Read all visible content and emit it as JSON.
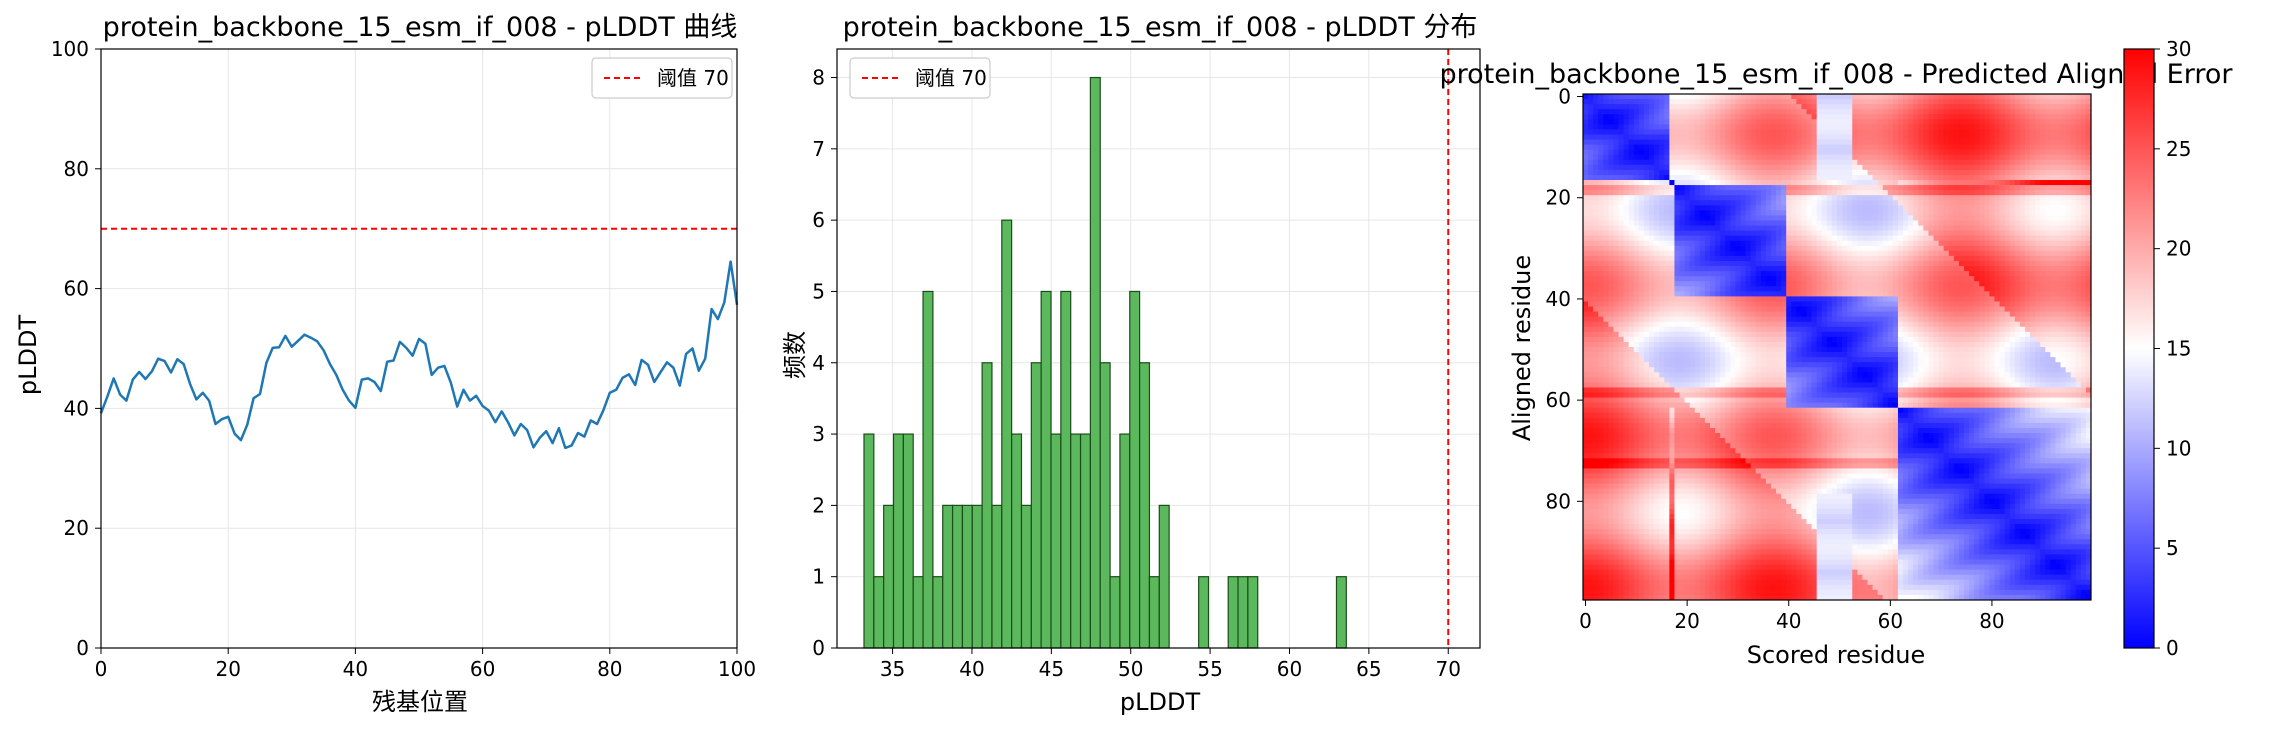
{
  "chart_data": [
    {
      "type": "line",
      "title": "protein_backbone_15_esm_if_008 - pLDDT 曲线",
      "xlabel": "残基位置",
      "ylabel": "pLDDT",
      "xlim": [
        0,
        100
      ],
      "ylim": [
        0,
        100
      ],
      "xticks": [
        0,
        20,
        40,
        60,
        80,
        100
      ],
      "yticks": [
        0,
        20,
        40,
        60,
        80,
        100
      ],
      "grid": true,
      "legend_position": "top-right",
      "legend": [
        "阈值 70"
      ],
      "threshold": 70,
      "line_color": "#1f77b4",
      "threshold_color": "#ff0000",
      "x": [
        0,
        1,
        2,
        3,
        4,
        5,
        6,
        7,
        8,
        9,
        10,
        11,
        12,
        13,
        14,
        15,
        16,
        17,
        18,
        19,
        20,
        21,
        22,
        23,
        24,
        25,
        26,
        27,
        28,
        29,
        30,
        31,
        32,
        33,
        34,
        35,
        36,
        37,
        38,
        39,
        40,
        41,
        42,
        43,
        44,
        45,
        46,
        47,
        48,
        49,
        50,
        51,
        52,
        53,
        54,
        55,
        56,
        57,
        58,
        59,
        60,
        61,
        62,
        63,
        64,
        65,
        66,
        67,
        68,
        69,
        70,
        71,
        72,
        73,
        74,
        75,
        76,
        77,
        78,
        79,
        80,
        81,
        82,
        83,
        84,
        85,
        86,
        87,
        88,
        89,
        90,
        91,
        92,
        93,
        94,
        95,
        96,
        97,
        98,
        99,
        100
      ],
      "values": [
        39.2,
        42.0,
        45.0,
        42.3,
        41.3,
        44.8,
        46.1,
        44.9,
        46.2,
        48.3,
        47.9,
        46.0,
        48.2,
        47.4,
        44.1,
        41.5,
        42.6,
        41.3,
        37.4,
        38.2,
        38.6,
        35.8,
        34.7,
        37.3,
        41.7,
        42.4,
        47.6,
        50.1,
        50.2,
        52.1,
        50.3,
        51.3,
        52.3,
        51.8,
        51.2,
        49.7,
        47.4,
        45.6,
        43.1,
        41.3,
        40.1,
        44.8,
        45.0,
        44.4,
        42.9,
        47.8,
        48.0,
        51.1,
        50.1,
        48.8,
        51.6,
        50.8,
        45.6,
        46.8,
        47.1,
        44.3,
        40.3,
        43.1,
        41.3,
        42.1,
        40.4,
        39.6,
        37.7,
        39.5,
        37.7,
        35.5,
        37.4,
        36.4,
        33.5,
        35.1,
        36.2,
        34.2,
        36.7,
        33.4,
        33.8,
        35.9,
        35.3,
        38.0,
        37.4,
        39.7,
        42.6,
        43.1,
        45.1,
        45.7,
        43.9,
        48.1,
        47.3,
        44.4,
        46.1,
        47.7,
        46.8,
        43.8,
        49.1,
        50.0,
        46.3,
        48.3,
        56.6,
        54.9,
        57.7,
        64.5,
        57.3
      ]
    },
    {
      "type": "bar",
      "title": "protein_backbone_15_esm_if_008 - pLDDT 分布",
      "xlabel": "pLDDT",
      "ylabel": "频数",
      "xlim": [
        31.5,
        72
      ],
      "ylim": [
        0,
        8.4
      ],
      "xticks": [
        35,
        40,
        45,
        50,
        55,
        60,
        65,
        70
      ],
      "yticks": [
        0,
        1,
        2,
        3,
        4,
        5,
        6,
        7,
        8
      ],
      "grid": true,
      "legend_position": "top-left",
      "legend": [
        "阈值 70"
      ],
      "threshold": 70,
      "bar_color": "#5cb85c",
      "edge_color": "#1a4d1a",
      "threshold_color": "#ff0000",
      "bin_start": 33.2,
      "bin_width": 0.62,
      "values": [
        3,
        1,
        2,
        3,
        3,
        1,
        5,
        1,
        2,
        2,
        2,
        2,
        4,
        2,
        6,
        3,
        2,
        4,
        5,
        3,
        5,
        3,
        3,
        8,
        4,
        1,
        3,
        5,
        4,
        1,
        2,
        0,
        0,
        0,
        1,
        0,
        0,
        1,
        1,
        1,
        0,
        0,
        0,
        0,
        0,
        0,
        0,
        0,
        1
      ]
    },
    {
      "type": "heatmap",
      "title": "protein_backbone_15_esm_if_008 - Predicted Aligned Error",
      "xlabel": "Scored residue",
      "ylabel": "Aligned residue",
      "n": 100,
      "xticks": [
        0,
        20,
        40,
        60,
        80
      ],
      "yticks": [
        0,
        20,
        40,
        60,
        80
      ],
      "colorbar_range": [
        0,
        30
      ],
      "colorbar_ticks": [
        0,
        5,
        10,
        15,
        20,
        25,
        30
      ],
      "colormap": [
        "#0000ff",
        "#ffffff",
        "#ff0000"
      ],
      "blocks": [
        [
          0,
          17
        ],
        [
          18,
          40
        ],
        [
          40,
          62
        ],
        [
          62,
          100
        ]
      ]
    }
  ]
}
